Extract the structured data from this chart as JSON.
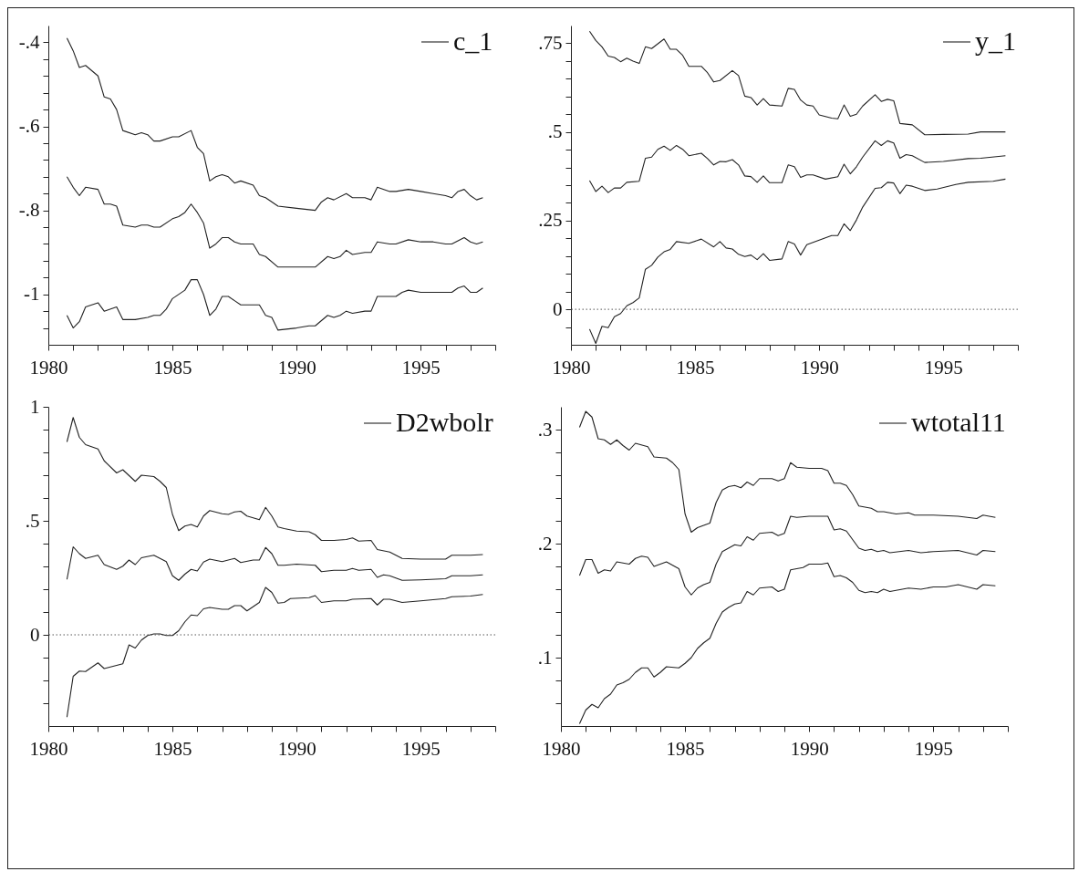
{
  "chart_data": [
    {
      "type": "line",
      "xlim": [
        1980,
        1998
      ],
      "xticks": [
        1980,
        {
          "value": 1981,
          "label": null
        },
        {
          "value": 1982,
          "label": null
        },
        {
          "value": 1983,
          "label": null
        },
        {
          "value": 1984,
          "label": null
        },
        1985,
        {
          "value": 1986,
          "label": null
        },
        {
          "value": 1987,
          "label": null
        },
        {
          "value": 1988,
          "label": null
        },
        {
          "value": 1989,
          "label": null
        },
        1990,
        {
          "value": 1991,
          "label": null
        },
        {
          "value": 1992,
          "label": null
        },
        {
          "value": 1993,
          "label": null
        },
        {
          "value": 1994,
          "label": null
        },
        1995,
        {
          "value": 1996,
          "label": null
        },
        {
          "value": 1997,
          "label": null
        },
        {
          "value": 1998,
          "label": null
        }
      ],
      "ylim": [
        -1.12,
        -0.36
      ],
      "yticks": [
        {
          "value": -1.08,
          "label": null
        },
        {
          "value": -1.04,
          "label": null
        },
        -1,
        {
          "value": -0.96,
          "label": null
        },
        {
          "value": -0.92,
          "label": null
        },
        {
          "value": -0.88,
          "label": null
        },
        {
          "value": -0.84,
          "label": null
        },
        {
          "value": -0.8,
          "label": "-.8"
        },
        {
          "value": -0.76,
          "label": null
        },
        {
          "value": -0.72,
          "label": null
        },
        {
          "value": -0.68,
          "label": null
        },
        {
          "value": -0.64,
          "label": null
        },
        {
          "value": -0.6,
          "label": "-.6"
        },
        {
          "value": -0.56,
          "label": null
        },
        {
          "value": -0.52,
          "label": null
        },
        {
          "value": -0.48,
          "label": null
        },
        {
          "value": -0.44,
          "label": null
        },
        {
          "value": -0.4,
          "label": "-.4"
        }
      ],
      "legend": "top right",
      "line_style": "solid",
      "series": [
        {
          "name": "c_1",
          "color": "#222222",
          "x": [
            1980.75,
            1981,
            1981.25,
            1981.5,
            1982,
            1982.25,
            1982.5,
            1982.75,
            1983,
            1983.5,
            1983.75,
            1984,
            1984.25,
            1984.5,
            1985,
            1985.25,
            1985.5,
            1985.75,
            1986,
            1986.25,
            1986.5,
            1986.75,
            1987,
            1987.25,
            1987.5,
            1987.75,
            1988.25,
            1988.5,
            1988.75,
            1989.25,
            1990,
            1990.75,
            1991.25,
            1991.5,
            1991.75,
            1992,
            1992.25,
            1992.75,
            1993,
            1993.25,
            1993.75,
            1994,
            1994.5,
            1995,
            1995.5,
            1996,
            1996.25,
            1996.75,
            1997,
            1997.25,
            1997.5
          ],
          "values": [
            -0.72,
            -0.745,
            -0.765,
            -0.745,
            -0.75,
            -0.785,
            -0.785,
            -0.79,
            -0.835,
            -0.84,
            -0.835,
            -0.835,
            -0.84,
            -0.84,
            -0.82,
            -0.815,
            -0.805,
            -0.785,
            -0.805,
            -0.83,
            -0.89,
            -0.88,
            -0.865,
            -0.865,
            -0.875,
            -0.88,
            -0.88,
            -0.905,
            -0.91,
            -0.935,
            -0.935,
            -0.935,
            -0.91,
            -0.915,
            -0.91,
            -0.895,
            -0.905,
            -0.9,
            -0.9,
            -0.875,
            -0.88,
            -0.88,
            -0.87,
            -0.875,
            -0.875,
            -0.88,
            -0.88,
            -0.865,
            -0.875,
            -0.88,
            -0.875
          ]
        },
        {
          "color": "#222222",
          "x": [
            1980.75,
            1981,
            1981.25,
            1981.5,
            1982,
            1982.25,
            1982.5,
            1982.75,
            1983,
            1983.5,
            1983.75,
            1984,
            1984.25,
            1984.5,
            1985,
            1985.25,
            1985.75,
            1986,
            1986.25,
            1986.5,
            1986.75,
            1987,
            1987.25,
            1987.5,
            1987.75,
            1988.25,
            1988.5,
            1988.75,
            1989.25,
            1990,
            1990.75,
            1991,
            1991.25,
            1991.5,
            1992,
            1992.25,
            1992.75,
            1993,
            1993.25,
            1993.75,
            1994,
            1994.5,
            1995,
            1995.5,
            1996,
            1996.25,
            1996.5,
            1996.75,
            1997,
            1997.25,
            1997.5
          ],
          "values": [
            -0.39,
            -0.42,
            -0.46,
            -0.455,
            -0.48,
            -0.53,
            -0.535,
            -0.56,
            -0.61,
            -0.62,
            -0.615,
            -0.62,
            -0.635,
            -0.635,
            -0.625,
            -0.625,
            -0.61,
            -0.65,
            -0.665,
            -0.73,
            -0.72,
            -0.715,
            -0.72,
            -0.735,
            -0.73,
            -0.74,
            -0.765,
            -0.77,
            -0.79,
            -0.795,
            -0.8,
            -0.78,
            -0.77,
            -0.775,
            -0.76,
            -0.77,
            -0.77,
            -0.775,
            -0.745,
            -0.755,
            -0.755,
            -0.75,
            -0.755,
            -0.76,
            -0.765,
            -0.77,
            -0.755,
            -0.75,
            -0.765,
            -0.775,
            -0.77
          ]
        },
        {
          "color": "#222222",
          "x": [
            1980.75,
            1981,
            1981.25,
            1981.5,
            1982,
            1982.25,
            1982.75,
            1983,
            1983.5,
            1984,
            1984.25,
            1984.5,
            1984.75,
            1985,
            1985.5,
            1985.75,
            1986,
            1986.25,
            1986.5,
            1986.75,
            1987,
            1987.25,
            1987.5,
            1987.75,
            1988.5,
            1988.75,
            1989,
            1989.25,
            1990,
            1990.5,
            1990.75,
            1991.25,
            1991.5,
            1991.75,
            1992,
            1992.25,
            1992.75,
            1993,
            1993.25,
            1993.75,
            1994,
            1994.25,
            1994.5,
            1995,
            1995.5,
            1996,
            1996.25,
            1996.5,
            1996.75,
            1997,
            1997.25,
            1997.5
          ],
          "values": [
            -1.05,
            -1.08,
            -1.065,
            -1.03,
            -1.02,
            -1.04,
            -1.03,
            -1.06,
            -1.06,
            -1.055,
            -1.05,
            -1.05,
            -1.035,
            -1.01,
            -0.99,
            -0.965,
            -0.965,
            -1,
            -1.05,
            -1.035,
            -1.005,
            -1.005,
            -1.015,
            -1.025,
            -1.025,
            -1.05,
            -1.055,
            -1.085,
            -1.08,
            -1.075,
            -1.075,
            -1.05,
            -1.055,
            -1.05,
            -1.04,
            -1.045,
            -1.04,
            -1.04,
            -1.005,
            -1.005,
            -1.005,
            -0.995,
            -0.99,
            -0.995,
            -0.995,
            -0.995,
            -0.995,
            -0.985,
            -0.98,
            -0.995,
            -0.995,
            -0.985
          ]
        }
      ]
    },
    {
      "type": "line",
      "xlim": [
        1980,
        1998
      ],
      "xticks": [
        1980,
        {
          "value": 1981,
          "label": null
        },
        {
          "value": 1982,
          "label": null
        },
        {
          "value": 1983,
          "label": null
        },
        {
          "value": 1984,
          "label": null
        },
        1985,
        {
          "value": 1986,
          "label": null
        },
        {
          "value": 1987,
          "label": null
        },
        {
          "value": 1988,
          "label": null
        },
        {
          "value": 1989,
          "label": null
        },
        1990,
        {
          "value": 1991,
          "label": null
        },
        {
          "value": 1992,
          "label": null
        },
        {
          "value": 1993,
          "label": null
        },
        {
          "value": 1994,
          "label": null
        },
        1995,
        {
          "value": 1996,
          "label": null
        },
        {
          "value": 1997,
          "label": null
        },
        {
          "value": 1998,
          "label": null
        }
      ],
      "ylim": [
        -0.1,
        0.8
      ],
      "yticks": [
        {
          "value": -0.05,
          "label": null
        },
        0,
        {
          "value": 0.05,
          "label": null
        },
        {
          "value": 0.1,
          "label": null
        },
        {
          "value": 0.15,
          "label": null
        },
        {
          "value": 0.2,
          "label": null
        },
        {
          "value": 0.25,
          "label": ".25"
        },
        {
          "value": 0.3,
          "label": null
        },
        {
          "value": 0.35,
          "label": null
        },
        {
          "value": 0.4,
          "label": null
        },
        {
          "value": 0.45,
          "label": null
        },
        {
          "value": 0.5,
          "label": ".5"
        },
        {
          "value": 0.55,
          "label": null
        },
        {
          "value": 0.6,
          "label": null
        },
        {
          "value": 0.65,
          "label": null
        },
        {
          "value": 0.7,
          "label": null
        },
        {
          "value": 0.75,
          "label": ".75"
        }
      ],
      "legend": "top right",
      "line_style": "solid",
      "ref_lines": [
        {
          "axis": "y",
          "value": 0,
          "color": "#555555",
          "line_style": "dotted"
        }
      ],
      "series": [
        {
          "name": "y_1",
          "color": "#222222",
          "x": [
            1980.75,
            1981,
            1981.25,
            1981.5,
            1981.75,
            1982,
            1982.25,
            1982.75,
            1983,
            1983.25,
            1983.5,
            1983.75,
            1984,
            1984.25,
            1984.5,
            1984.75,
            1985.25,
            1985.5,
            1985.75,
            1986,
            1986.25,
            1986.5,
            1986.75,
            1987,
            1987.25,
            1987.5,
            1987.75,
            1988,
            1988.5,
            1988.75,
            1989,
            1989.25,
            1989.5,
            1989.75,
            1990.25,
            1990.75,
            1991,
            1991.25,
            1991.5,
            1991.75,
            1992.25,
            1992.5,
            1992.75,
            1993,
            1993.25,
            1993.5,
            1993.75,
            1994.25,
            1995,
            1996,
            1996.5,
            1997.5
          ],
          "values": [
            0.363,
            0.332,
            0.347,
            0.329,
            0.342,
            0.342,
            0.358,
            0.361,
            0.426,
            0.429,
            0.451,
            0.46,
            0.448,
            0.462,
            0.451,
            0.433,
            0.44,
            0.425,
            0.407,
            0.417,
            0.416,
            0.422,
            0.407,
            0.376,
            0.374,
            0.358,
            0.376,
            0.357,
            0.357,
            0.407,
            0.402,
            0.372,
            0.379,
            0.379,
            0.367,
            0.374,
            0.409,
            0.382,
            0.402,
            0.429,
            0.475,
            0.462,
            0.475,
            0.469,
            0.426,
            0.436,
            0.433,
            0.414,
            0.417,
            0.425,
            0.426,
            0.433
          ]
        },
        {
          "color": "#222222",
          "x": [
            1980.75,
            1981,
            1981.25,
            1981.5,
            1981.75,
            1982,
            1982.25,
            1982.5,
            1982.75,
            1983,
            1983.25,
            1983.75,
            1984,
            1984.25,
            1984.5,
            1984.75,
            1985.25,
            1985.5,
            1985.75,
            1986,
            1986.5,
            1986.75,
            1987,
            1987.25,
            1987.5,
            1987.75,
            1988,
            1988.5,
            1988.75,
            1989,
            1989.25,
            1989.5,
            1989.75,
            1990,
            1990.5,
            1990.75,
            1991,
            1991.25,
            1991.5,
            1991.75,
            1992.25,
            1992.5,
            1992.75,
            1993,
            1993.25,
            1993.75,
            1994.25,
            1995,
            1996,
            1996.5,
            1997.5
          ],
          "values": [
            0.784,
            0.758,
            0.74,
            0.714,
            0.71,
            0.698,
            0.708,
            0.7,
            0.693,
            0.74,
            0.735,
            0.762,
            0.733,
            0.733,
            0.716,
            0.685,
            0.685,
            0.667,
            0.641,
            0.645,
            0.673,
            0.659,
            0.601,
            0.597,
            0.576,
            0.594,
            0.576,
            0.573,
            0.623,
            0.62,
            0.59,
            0.576,
            0.573,
            0.548,
            0.539,
            0.537,
            0.576,
            0.544,
            0.55,
            0.573,
            0.605,
            0.586,
            0.592,
            0.588,
            0.524,
            0.52,
            0.492,
            0.493,
            0.494,
            0.5,
            0.5
          ]
        },
        {
          "color": "#222222",
          "x": [
            1980.75,
            1981,
            1981.25,
            1981.5,
            1981.75,
            1982,
            1982.25,
            1982.5,
            1982.75,
            1983,
            1983.25,
            1983.5,
            1983.75,
            1984,
            1984.25,
            1984.75,
            1985.25,
            1985.75,
            1986,
            1986.25,
            1986.5,
            1986.75,
            1987,
            1987.25,
            1987.5,
            1987.75,
            1988,
            1988.5,
            1988.75,
            1989,
            1989.25,
            1989.5,
            1990,
            1990.5,
            1990.75,
            1991,
            1991.25,
            1991.5,
            1991.75,
            1992.25,
            1992.5,
            1992.75,
            1993,
            1993.25,
            1993.5,
            1993.75,
            1994.25,
            1994.75,
            1995.5,
            1996,
            1997,
            1997.5
          ],
          "values": [
            -0.056,
            -0.096,
            -0.048,
            -0.052,
            -0.021,
            -0.012,
            0.01,
            0.019,
            0.032,
            0.113,
            0.124,
            0.147,
            0.162,
            0.169,
            0.191,
            0.186,
            0.198,
            0.176,
            0.191,
            0.173,
            0.17,
            0.155,
            0.149,
            0.153,
            0.14,
            0.157,
            0.138,
            0.142,
            0.191,
            0.184,
            0.153,
            0.182,
            0.195,
            0.208,
            0.208,
            0.241,
            0.222,
            0.252,
            0.288,
            0.341,
            0.343,
            0.358,
            0.356,
            0.326,
            0.35,
            0.347,
            0.335,
            0.339,
            0.352,
            0.358,
            0.361,
            0.367
          ]
        }
      ]
    },
    {
      "type": "line",
      "xlim": [
        1980,
        1998
      ],
      "xticks": [
        1980,
        {
          "value": 1981,
          "label": null
        },
        {
          "value": 1982,
          "label": null
        },
        {
          "value": 1983,
          "label": null
        },
        {
          "value": 1984,
          "label": null
        },
        1985,
        {
          "value": 1986,
          "label": null
        },
        {
          "value": 1987,
          "label": null
        },
        {
          "value": 1988,
          "label": null
        },
        {
          "value": 1989,
          "label": null
        },
        1990,
        {
          "value": 1991,
          "label": null
        },
        {
          "value": 1992,
          "label": null
        },
        {
          "value": 1993,
          "label": null
        },
        {
          "value": 1994,
          "label": null
        },
        1995,
        {
          "value": 1996,
          "label": null
        },
        {
          "value": 1997,
          "label": null
        },
        {
          "value": 1998,
          "label": null
        }
      ],
      "ylim": [
        -0.4,
        1
      ],
      "yticks": [
        {
          "value": -0.3,
          "label": null
        },
        {
          "value": -0.2,
          "label": null
        },
        {
          "value": -0.1,
          "label": null
        },
        0,
        {
          "value": 0.1,
          "label": null
        },
        {
          "value": 0.2,
          "label": null
        },
        {
          "value": 0.3,
          "label": null
        },
        {
          "value": 0.4,
          "label": null
        },
        {
          "value": 0.5,
          "label": ".5"
        },
        {
          "value": 0.6,
          "label": null
        },
        {
          "value": 0.7,
          "label": null
        },
        {
          "value": 0.8,
          "label": null
        },
        {
          "value": 0.9,
          "label": null
        },
        1
      ],
      "legend": "top right",
      "line_style": "solid",
      "ref_lines": [
        {
          "axis": "y",
          "value": 0,
          "color": "#555555",
          "line_style": "dotted"
        }
      ],
      "series": [
        {
          "name": "D2wbolr",
          "color": "#222222",
          "x": [
            1980.75,
            1981,
            1981.25,
            1981.5,
            1982,
            1982.25,
            1982.75,
            1983,
            1983.25,
            1983.5,
            1983.75,
            1984.25,
            1984.75,
            1985,
            1985.25,
            1985.5,
            1985.75,
            1986,
            1986.25,
            1986.5,
            1987,
            1987.5,
            1987.75,
            1988.25,
            1988.5,
            1988.75,
            1989,
            1989.25,
            1989.5,
            1990,
            1990.75,
            1991,
            1991.5,
            1992,
            1992.25,
            1992.5,
            1993,
            1993.25,
            1993.5,
            1993.75,
            1994.25,
            1995,
            1996,
            1996.25,
            1997,
            1997.5
          ],
          "values": [
            0.243,
            0.386,
            0.356,
            0.335,
            0.349,
            0.308,
            0.287,
            0.301,
            0.328,
            0.308,
            0.338,
            0.349,
            0.321,
            0.259,
            0.239,
            0.266,
            0.287,
            0.28,
            0.319,
            0.332,
            0.321,
            0.335,
            0.317,
            0.328,
            0.328,
            0.383,
            0.356,
            0.305,
            0.305,
            0.31,
            0.305,
            0.277,
            0.283,
            0.283,
            0.291,
            0.283,
            0.287,
            0.252,
            0.263,
            0.259,
            0.239,
            0.241,
            0.246,
            0.259,
            0.259,
            0.263
          ]
        },
        {
          "color": "#222222",
          "x": [
            1980.75,
            1981,
            1981.25,
            1981.5,
            1982,
            1982.25,
            1982.75,
            1983,
            1983.5,
            1983.75,
            1984.25,
            1984.5,
            1984.75,
            1985,
            1985.25,
            1985.5,
            1985.75,
            1986,
            1986.25,
            1986.5,
            1987,
            1987.25,
            1987.5,
            1987.75,
            1988,
            1988.5,
            1988.75,
            1989,
            1989.25,
            1989.5,
            1990,
            1990.5,
            1990.75,
            1991,
            1991.5,
            1992,
            1992.25,
            1992.5,
            1993,
            1993.25,
            1993.75,
            1994.25,
            1995,
            1996,
            1996.25,
            1997,
            1997.5
          ],
          "values": [
            0.846,
            0.953,
            0.866,
            0.834,
            0.815,
            0.763,
            0.71,
            0.724,
            0.673,
            0.7,
            0.694,
            0.673,
            0.646,
            0.528,
            0.457,
            0.477,
            0.484,
            0.473,
            0.521,
            0.545,
            0.531,
            0.528,
            0.539,
            0.542,
            0.521,
            0.505,
            0.559,
            0.521,
            0.473,
            0.466,
            0.455,
            0.452,
            0.439,
            0.414,
            0.414,
            0.418,
            0.425,
            0.411,
            0.414,
            0.374,
            0.363,
            0.335,
            0.332,
            0.332,
            0.349,
            0.349,
            0.352
          ]
        },
        {
          "color": "#222222",
          "x": [
            1980.75,
            1981,
            1981.25,
            1981.5,
            1982,
            1982.25,
            1982.75,
            1983,
            1983.25,
            1983.5,
            1983.75,
            1984,
            1984.25,
            1984.5,
            1984.75,
            1985,
            1985.25,
            1985.5,
            1985.75,
            1986,
            1986.25,
            1986.5,
            1987,
            1987.25,
            1987.5,
            1987.75,
            1988,
            1988.5,
            1988.75,
            1989,
            1989.25,
            1989.5,
            1989.75,
            1990.5,
            1990.75,
            1991,
            1991.5,
            1992,
            1992.25,
            1993,
            1993.25,
            1993.5,
            1993.75,
            1994.25,
            1995,
            1996,
            1996.25,
            1997,
            1997.5
          ],
          "values": [
            -0.361,
            -0.182,
            -0.159,
            -0.161,
            -0.123,
            -0.148,
            -0.134,
            -0.127,
            -0.044,
            -0.058,
            -0.023,
            -0.003,
            0.004,
            0.004,
            -0.003,
            -0.003,
            0.018,
            0.057,
            0.087,
            0.084,
            0.114,
            0.12,
            0.112,
            0.112,
            0.128,
            0.128,
            0.105,
            0.142,
            0.208,
            0.186,
            0.139,
            0.142,
            0.159,
            0.163,
            0.172,
            0.142,
            0.149,
            0.149,
            0.156,
            0.159,
            0.131,
            0.156,
            0.156,
            0.142,
            0.149,
            0.159,
            0.167,
            0.17,
            0.177
          ]
        }
      ]
    },
    {
      "type": "line",
      "xlim": [
        1980,
        1998
      ],
      "xticks": [
        1980,
        {
          "value": 1981,
          "label": null
        },
        {
          "value": 1982,
          "label": null
        },
        {
          "value": 1983,
          "label": null
        },
        {
          "value": 1984,
          "label": null
        },
        1985,
        {
          "value": 1986,
          "label": null
        },
        {
          "value": 1987,
          "label": null
        },
        {
          "value": 1988,
          "label": null
        },
        {
          "value": 1989,
          "label": null
        },
        1990,
        {
          "value": 1991,
          "label": null
        },
        {
          "value": 1992,
          "label": null
        },
        {
          "value": 1993,
          "label": null
        },
        {
          "value": 1994,
          "label": null
        },
        1995,
        {
          "value": 1996,
          "label": null
        },
        {
          "value": 1997,
          "label": null
        },
        {
          "value": 1998,
          "label": null
        }
      ],
      "ylim": [
        0.04,
        0.32
      ],
      "yticks": [
        {
          "value": 0.06,
          "label": null
        },
        {
          "value": 0.08,
          "label": null
        },
        {
          "value": 0.1,
          "label": ".1"
        },
        {
          "value": 0.12,
          "label": null
        },
        {
          "value": 0.14,
          "label": null
        },
        {
          "value": 0.16,
          "label": null
        },
        {
          "value": 0.18,
          "label": null
        },
        {
          "value": 0.2,
          "label": ".2"
        },
        {
          "value": 0.22,
          "label": null
        },
        {
          "value": 0.24,
          "label": null
        },
        {
          "value": 0.26,
          "label": null
        },
        {
          "value": 0.28,
          "label": null
        },
        {
          "value": 0.3,
          "label": ".3"
        }
      ],
      "legend": "top right",
      "line_style": "solid",
      "series": [
        {
          "name": "wtotal11",
          "color": "#222222",
          "x": [
            1980.75,
            1981,
            1981.25,
            1981.5,
            1981.75,
            1982,
            1982.25,
            1982.75,
            1983,
            1983.25,
            1983.5,
            1983.75,
            1984.25,
            1984.75,
            1985,
            1985.25,
            1985.5,
            1985.75,
            1986,
            1986.25,
            1986.5,
            1986.75,
            1987,
            1987.25,
            1987.5,
            1987.75,
            1988,
            1988.5,
            1988.75,
            1989,
            1989.25,
            1989.5,
            1990,
            1990.75,
            1991,
            1991.25,
            1991.5,
            1992,
            1992.25,
            1992.5,
            1992.75,
            1993,
            1993.25,
            1994,
            1994.5,
            1995,
            1996,
            1996.75,
            1997,
            1997.5
          ],
          "values": [
            0.172,
            0.186,
            0.186,
            0.174,
            0.177,
            0.176,
            0.184,
            0.182,
            0.187,
            0.189,
            0.188,
            0.18,
            0.184,
            0.178,
            0.162,
            0.155,
            0.161,
            0.164,
            0.166,
            0.182,
            0.193,
            0.196,
            0.199,
            0.198,
            0.206,
            0.203,
            0.209,
            0.21,
            0.207,
            0.209,
            0.224,
            0.223,
            0.224,
            0.224,
            0.212,
            0.213,
            0.211,
            0.196,
            0.194,
            0.195,
            0.193,
            0.194,
            0.192,
            0.194,
            0.192,
            0.193,
            0.194,
            0.19,
            0.194,
            0.193
          ]
        },
        {
          "color": "#222222",
          "x": [
            1980.75,
            1981,
            1981.25,
            1981.5,
            1981.75,
            1982,
            1982.25,
            1982.5,
            1982.75,
            1983,
            1983.5,
            1983.75,
            1984.25,
            1984.5,
            1984.75,
            1985,
            1985.25,
            1985.5,
            1985.75,
            1986,
            1986.25,
            1986.5,
            1986.75,
            1987,
            1987.25,
            1987.5,
            1987.75,
            1988,
            1988.5,
            1988.75,
            1989,
            1989.25,
            1989.5,
            1990,
            1990.5,
            1990.75,
            1991,
            1991.25,
            1991.5,
            1991.75,
            1992,
            1992.5,
            1992.75,
            1993,
            1993.5,
            1994,
            1994.25,
            1995,
            1996,
            1996.75,
            1997,
            1997.5
          ],
          "values": [
            0.302,
            0.316,
            0.311,
            0.292,
            0.291,
            0.287,
            0.291,
            0.286,
            0.282,
            0.288,
            0.285,
            0.276,
            0.275,
            0.271,
            0.265,
            0.226,
            0.21,
            0.214,
            0.216,
            0.218,
            0.236,
            0.247,
            0.25,
            0.251,
            0.249,
            0.254,
            0.251,
            0.257,
            0.257,
            0.255,
            0.257,
            0.271,
            0.267,
            0.266,
            0.266,
            0.264,
            0.253,
            0.253,
            0.251,
            0.243,
            0.233,
            0.231,
            0.228,
            0.228,
            0.226,
            0.227,
            0.225,
            0.225,
            0.224,
            0.222,
            0.225,
            0.223
          ]
        },
        {
          "color": "#222222",
          "x": [
            1980.75,
            1981,
            1981.25,
            1981.5,
            1981.75,
            1982,
            1982.25,
            1982.5,
            1982.75,
            1983,
            1983.25,
            1983.5,
            1983.75,
            1984,
            1984.25,
            1984.75,
            1985,
            1985.25,
            1985.5,
            1985.75,
            1986,
            1986.25,
            1986.5,
            1986.75,
            1987,
            1987.25,
            1987.5,
            1987.75,
            1988,
            1988.5,
            1988.75,
            1989,
            1989.25,
            1989.5,
            1989.75,
            1990,
            1990.5,
            1990.75,
            1991,
            1991.25,
            1991.5,
            1991.75,
            1992,
            1992.25,
            1992.5,
            1992.75,
            1993,
            1993.25,
            1994,
            1994.5,
            1995,
            1995.5,
            1996,
            1996.75,
            1997,
            1997.5
          ],
          "values": [
            0.042,
            0.054,
            0.059,
            0.056,
            0.064,
            0.068,
            0.076,
            0.078,
            0.081,
            0.087,
            0.091,
            0.091,
            0.083,
            0.087,
            0.092,
            0.091,
            0.095,
            0.1,
            0.108,
            0.113,
            0.117,
            0.13,
            0.14,
            0.144,
            0.147,
            0.148,
            0.158,
            0.155,
            0.161,
            0.162,
            0.158,
            0.16,
            0.177,
            0.178,
            0.179,
            0.182,
            0.182,
            0.183,
            0.171,
            0.172,
            0.17,
            0.166,
            0.159,
            0.157,
            0.158,
            0.157,
            0.16,
            0.158,
            0.161,
            0.16,
            0.162,
            0.162,
            0.164,
            0.16,
            0.164,
            0.163
          ]
        }
      ]
    }
  ]
}
